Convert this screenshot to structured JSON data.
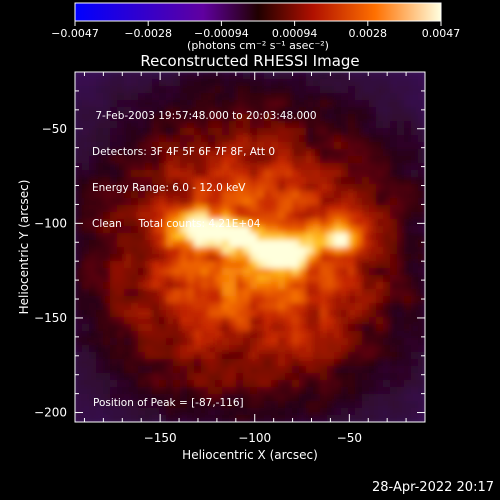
{
  "chart_data": {
    "type": "heatmap",
    "title": "Reconstructed RHESSI Image",
    "xlabel": "Heliocentric X (arcsec)",
    "ylabel": "Heliocentric Y (arcsec)",
    "xlim": [
      -195,
      -10
    ],
    "ylim": [
      -205,
      -20
    ],
    "x_ticks": [
      -150,
      -100,
      -50
    ],
    "y_ticks": [
      -50,
      -100,
      -150,
      -200
    ],
    "x_tick_labels": [
      "−150",
      "−100",
      "−50"
    ],
    "y_tick_labels": [
      "−50",
      "−100",
      "−150",
      "−200"
    ],
    "colorbar": {
      "ticks": [
        "−0.0047",
        "−0.0028",
        "−0.00094",
        "0.00094",
        "0.0028",
        "0.0047"
      ],
      "range": [
        -0.0047,
        0.0047
      ],
      "units_label": "(photons cm⁻² s⁻¹ asec⁻²)"
    },
    "annotations": [
      " 7-Feb-2003 19:57:48.000 to 20:03:48.000",
      "Detectors: 3F 4F 5F 6F 7F 8F, Att 0",
      "Energy Range: 6.0 - 12.0 keV",
      "Clean     Total counts: 4.21E+04"
    ],
    "peak_label": "Position of Peak = [-87,-116]",
    "peak": {
      "x": -87,
      "y": -116
    },
    "sources": [
      {
        "x": -87,
        "y": -116,
        "amp": 1.0
      },
      {
        "x": -130,
        "y": -103,
        "amp": 0.8
      },
      {
        "x": -55,
        "y": -108,
        "amp": 0.7
      },
      {
        "x": -110,
        "y": -108,
        "amp": 0.6
      }
    ]
  },
  "footer_timestamp": "28-Apr-2022 20:17"
}
